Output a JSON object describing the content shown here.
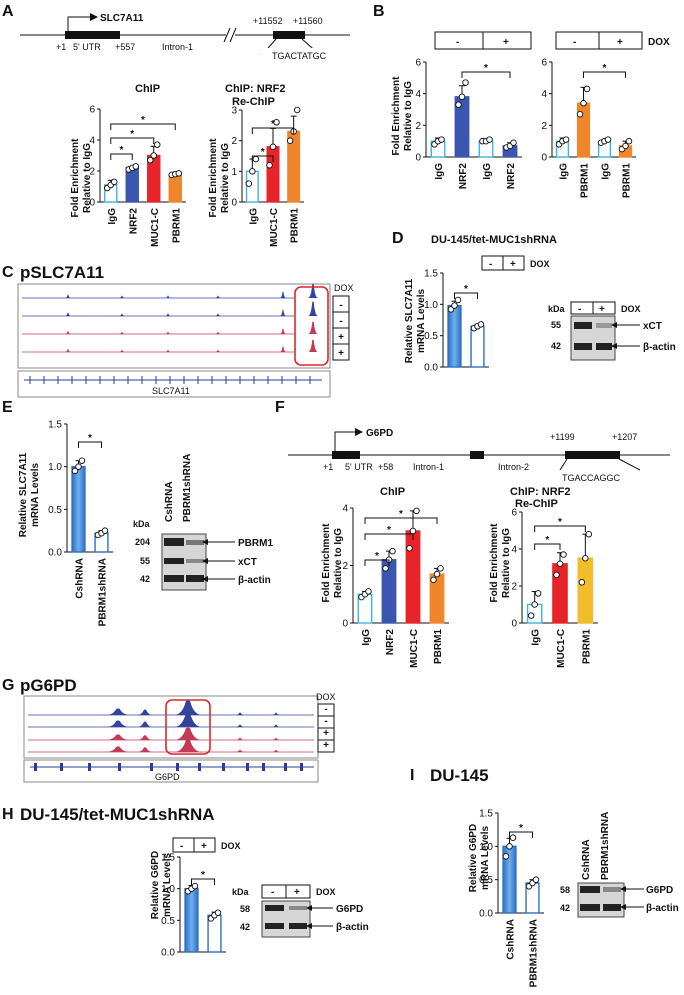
{
  "colors": {
    "igg": "#3ab5e0",
    "nrf2": "#3a56b0",
    "muc1c": "#e8242b",
    "pbrm1_orange": "#f0862c",
    "pbrm1_yellow": "#f2bd2b",
    "dox_minus": "#3a7fd0",
    "dox_plus": "#ffffff",
    "track_blue": "#3442a0",
    "track_red": "#c23a56",
    "highlight": "#e0262c"
  },
  "panels": {
    "A": "A",
    "B": "B",
    "C": "C",
    "D": "D",
    "E": "E",
    "F": "F",
    "G": "G",
    "H": "H",
    "I": "I"
  },
  "gene_a": {
    "gene": "SLC7A11",
    "tss": "+1",
    "utr_end": "+557",
    "utr": "5' UTR",
    "intron": "Intron-1",
    "site_start": "+11552",
    "site_end": "+11560",
    "motif": "TGACTATGC"
  },
  "gene_f": {
    "gene": "G6PD",
    "tss": "+1",
    "utr_end": "+58",
    "utr": "5' UTR",
    "intron1": "Intron-1",
    "intron2": "Intron-2",
    "site_start": "+1199",
    "site_end": "+1207",
    "motif": "TGACCAGGC"
  },
  "titles": {
    "chip": "ChIP",
    "rechip_1": "ChIP: NRF2",
    "rechip_2": "Re-ChIP",
    "pSLC7A11": "pSLC7A11",
    "pG6PD": "pG6PD",
    "d_title": "DU-145/tet-MUC1shRNA",
    "h_title": "DU-145/tet-MUC1shRNA",
    "i_title": "DU-145"
  },
  "ylabels": {
    "fold_1": "Fold Enrichment",
    "fold_2": "Relative to IgG",
    "slc_1": "Relative SLC7A11",
    "slc_2": "mRNA Levels",
    "g6pd_1": "Relative G6PD",
    "g6pd_2": "mRNA Levels"
  },
  "dox": {
    "label": "DOX",
    "minus": "-",
    "plus": "+"
  },
  "sig": "*",
  "tracks": {
    "c_gene": "SLC7A11",
    "g_gene": "G6PD",
    "c_dox": [
      "-",
      "-",
      "+",
      "+"
    ],
    "g_dox": [
      "-",
      "-",
      "+",
      "+"
    ]
  },
  "blots": {
    "kda": "kDa",
    "d": {
      "m1": "55",
      "m2": "42",
      "b1": "xCT",
      "b2": "β-actin"
    },
    "e": {
      "lane1": "CshRNA",
      "lane2": "PBRM1shRNA",
      "m1": "204",
      "m2": "55",
      "m3": "42",
      "b1": "PBRM1",
      "b2": "xCT",
      "b3": "β-actin"
    },
    "h": {
      "m1": "58",
      "m2": "42",
      "b1": "G6PD",
      "b2": "β-actin"
    },
    "i": {
      "lane1": "CshRNA",
      "lane2": "PBRM1shRNA",
      "m1": "58",
      "m2": "42",
      "b1": "G6PD",
      "b2": "β-actin"
    }
  },
  "chart_data": [
    {
      "id": "A1",
      "type": "bar",
      "title": "ChIP",
      "categories": [
        "IgG",
        "NRF2",
        "MUC1-C",
        "PBRM1"
      ],
      "values": [
        1.1,
        2.2,
        3.0,
        1.8
      ],
      "errors": [
        0.3,
        0.1,
        0.6,
        0.1
      ],
      "ylabel": "Fold Enrichment Relative to IgG",
      "ylim": [
        0,
        6
      ],
      "yticks": [
        0,
        2,
        4,
        6
      ],
      "points": [
        [
          0.9,
          1.1,
          1.3
        ],
        [
          2.1,
          2.2,
          2.3
        ],
        [
          2.7,
          3.0,
          3.7
        ],
        [
          1.75,
          1.8,
          1.85
        ]
      ]
    },
    {
      "id": "A2",
      "type": "bar",
      "title": "ChIP: NRF2 Re-ChIP",
      "categories": [
        "IgG",
        "MUC1-C",
        "PBRM1"
      ],
      "values": [
        1.0,
        1.8,
        2.3
      ],
      "errors": [
        0.4,
        0.6,
        0.5
      ],
      "ylabel": "Fold Enrichment Relative to IgG",
      "ylim": [
        0,
        3
      ],
      "yticks": [
        0,
        1,
        2,
        3
      ],
      "points": [
        [
          0.6,
          1.0,
          1.4
        ],
        [
          1.2,
          1.8,
          2.6
        ],
        [
          2.0,
          2.3,
          3.0
        ]
      ]
    },
    {
      "id": "B1",
      "type": "bar",
      "categories": [
        "IgG",
        "NRF2",
        "IgG",
        "NRF2"
      ],
      "dox": [
        "-",
        "-",
        "+",
        "+"
      ],
      "values": [
        1.0,
        3.8,
        1.0,
        0.7
      ],
      "errors": [
        0.2,
        0.7,
        0.1,
        0.2
      ],
      "ylabel": "Fold Enrichment Relative to IgG",
      "ylim": [
        0,
        6
      ],
      "yticks": [
        0,
        2,
        4,
        6
      ],
      "points": [
        [
          0.8,
          1.0,
          1.1
        ],
        [
          3.3,
          3.8,
          4.7
        ],
        [
          1.0,
          1.0,
          1.1
        ],
        [
          0.6,
          0.7,
          0.9
        ]
      ]
    },
    {
      "id": "B2",
      "type": "bar",
      "categories": [
        "IgG",
        "PBRM1",
        "IgG",
        "PBRM1"
      ],
      "dox": [
        "-",
        "-",
        "+",
        "+"
      ],
      "values": [
        1.0,
        3.4,
        1.0,
        0.7
      ],
      "errors": [
        0.2,
        1.0,
        0.1,
        0.3
      ],
      "ylim": [
        0,
        6
      ],
      "yticks": [
        0,
        2,
        4,
        6
      ],
      "points": [
        [
          0.8,
          1.0,
          1.1
        ],
        [
          2.7,
          3.4,
          4.3
        ],
        [
          0.9,
          1.0,
          1.1
        ],
        [
          0.5,
          0.7,
          1.0
        ]
      ]
    },
    {
      "id": "D",
      "type": "bar",
      "categories": [
        "-",
        "+"
      ],
      "dox": [
        "-",
        "+"
      ],
      "values": [
        0.98,
        0.65
      ],
      "errors": [
        0.07,
        0.03
      ],
      "ylabel": "Relative SLC7A11 mRNA Levels",
      "ylim": [
        0,
        1.5
      ],
      "yticks": [
        0,
        0.5,
        1.0,
        1.5
      ],
      "points": [
        [
          0.92,
          0.98,
          1.07
        ],
        [
          0.62,
          0.65,
          0.68
        ]
      ]
    },
    {
      "id": "E",
      "type": "bar",
      "categories": [
        "CshRNA",
        "PBRM1shRNA"
      ],
      "values": [
        1.0,
        0.22
      ],
      "errors": [
        0.07,
        0.03
      ],
      "ylabel": "Relative SLC7A11 mRNA Levels",
      "ylim": [
        0,
        1.5
      ],
      "yticks": [
        0,
        0.5,
        1.0,
        1.5
      ],
      "points": [
        [
          0.95,
          1.0,
          1.07
        ],
        [
          0.2,
          0.22,
          0.25
        ]
      ]
    },
    {
      "id": "F1",
      "type": "bar",
      "title": "ChIP",
      "categories": [
        "IgG",
        "NRF2",
        "MUC1-C",
        "PBRM1"
      ],
      "values": [
        1.0,
        2.2,
        3.2,
        1.7
      ],
      "errors": [
        0.1,
        0.3,
        0.7,
        0.2
      ],
      "ylabel": "Fold Enrichment Relative to IgG",
      "ylim": [
        0,
        4
      ],
      "yticks": [
        0,
        2,
        4
      ],
      "points": [
        [
          0.9,
          1.0,
          1.1
        ],
        [
          1.9,
          2.2,
          2.5
        ],
        [
          2.6,
          3.2,
          3.9
        ],
        [
          1.5,
          1.7,
          1.9
        ]
      ]
    },
    {
      "id": "F2",
      "type": "bar",
      "title": "ChIP: NRF2 Re-ChIP",
      "categories": [
        "IgG",
        "MUC1-C",
        "PBRM1"
      ],
      "values": [
        1.0,
        3.2,
        3.5
      ],
      "errors": [
        0.7,
        0.6,
        1.3
      ],
      "ylabel": "Fold Enrichment Relative to IgG",
      "ylim": [
        0,
        6
      ],
      "yticks": [
        0,
        2,
        4,
        6
      ],
      "points": [
        [
          0.4,
          1.0,
          1.6
        ],
        [
          2.6,
          3.2,
          3.7
        ],
        [
          2.2,
          3.5,
          4.8
        ]
      ]
    },
    {
      "id": "H",
      "type": "bar",
      "categories": [
        "-",
        "+"
      ],
      "dox": [
        "-",
        "+"
      ],
      "values": [
        1.0,
        0.58
      ],
      "errors": [
        0.05,
        0.05
      ],
      "ylabel": "Relative G6PD mRNA Levels",
      "ylim": [
        0,
        1.5
      ],
      "yticks": [
        0,
        0.5,
        1.0,
        1.5
      ],
      "points": [
        [
          0.96,
          1.0,
          1.04
        ],
        [
          0.53,
          0.58,
          0.62
        ]
      ]
    },
    {
      "id": "I",
      "type": "bar",
      "categories": [
        "CshRNA",
        "PBRM1shRNA"
      ],
      "values": [
        1.0,
        0.45
      ],
      "errors": [
        0.12,
        0.05
      ],
      "ylabel": "Relative G6PD mRNA Levels",
      "ylim": [
        0,
        1.5
      ],
      "yticks": [
        0,
        0.5,
        1.0,
        1.5
      ],
      "points": [
        [
          0.85,
          1.0,
          1.13
        ],
        [
          0.4,
          0.45,
          0.5
        ]
      ]
    }
  ]
}
